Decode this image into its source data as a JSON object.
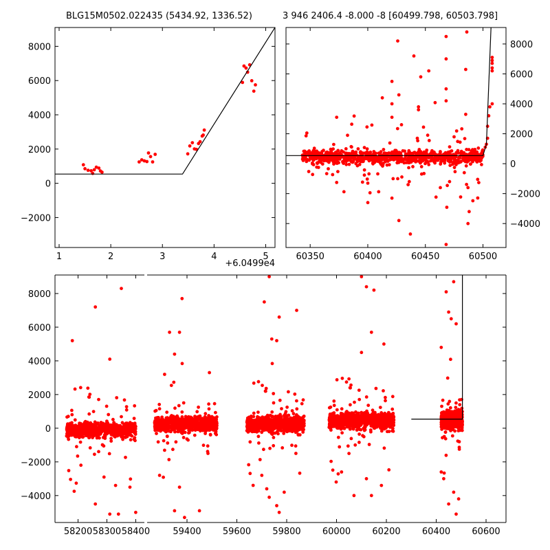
{
  "colors": {
    "points": "#ff0000",
    "model": "#000000",
    "axes": "#000000",
    "background": "#ffffff"
  },
  "chart_data": [
    {
      "id": "zoom",
      "type": "scatter",
      "title": "BLG15M0502.022435 (5434.92, 1336.52)",
      "x_offset_label": "+6.0499e4",
      "xlim": [
        0.92,
        5.18
      ],
      "ylim": [
        -3750,
        9100
      ],
      "xticks": [
        1,
        2,
        3,
        4,
        5
      ],
      "yticks": [
        -2000,
        0,
        2000,
        4000,
        6000,
        8000
      ],
      "ytick_side": "left",
      "points": [
        [
          1.47,
          1080
        ],
        [
          1.5,
          850
        ],
        [
          1.56,
          760
        ],
        [
          1.62,
          730
        ],
        [
          1.65,
          580
        ],
        [
          1.68,
          790
        ],
        [
          1.72,
          940
        ],
        [
          1.77,
          890
        ],
        [
          1.8,
          720
        ],
        [
          1.83,
          650
        ],
        [
          2.55,
          1250
        ],
        [
          2.6,
          1370
        ],
        [
          2.65,
          1310
        ],
        [
          2.7,
          1270
        ],
        [
          2.73,
          1770
        ],
        [
          2.77,
          1560
        ],
        [
          2.81,
          1250
        ],
        [
          2.86,
          1690
        ],
        [
          3.49,
          1720
        ],
        [
          3.53,
          2180
        ],
        [
          3.58,
          2370
        ],
        [
          3.62,
          2010
        ],
        [
          3.66,
          1980
        ],
        [
          3.7,
          2320
        ],
        [
          3.73,
          2430
        ],
        [
          3.77,
          2760
        ],
        [
          3.79,
          2820
        ],
        [
          3.81,
          3110
        ],
        [
          4.55,
          5890
        ],
        [
          4.58,
          6850
        ],
        [
          4.62,
          6730
        ],
        [
          4.65,
          6490
        ],
        [
          4.69,
          6920
        ],
        [
          4.73,
          5990
        ],
        [
          4.77,
          5380
        ],
        [
          4.8,
          5750
        ]
      ],
      "model": [
        [
          0.92,
          540
        ],
        [
          3.39,
          540
        ],
        [
          5.18,
          9100
        ]
      ]
    },
    {
      "id": "recent",
      "type": "scatter",
      "title": "3 946 2406.4 -8.000 -8 [60499.798, 60503.798]",
      "xlim": [
        60329,
        60520
      ],
      "ylim": [
        -5600,
        9100
      ],
      "xticks": [
        60350,
        60400,
        60450,
        60500
      ],
      "yticks": [
        -4000,
        -2000,
        0,
        2000,
        4000,
        6000,
        8000
      ],
      "ytick_side": "right",
      "generated": {
        "count": 900,
        "center": 450,
        "spread": 360,
        "outlier_rate": 0.07,
        "x_gap": [
          60362,
          60363
        ]
      },
      "extra_points": [
        [
          60426,
          8200
        ],
        [
          60440,
          7200
        ],
        [
          60468,
          8500
        ],
        [
          60486,
          8800
        ],
        [
          60468,
          7000
        ],
        [
          60453,
          6200
        ],
        [
          60446,
          5800
        ],
        [
          60485,
          6300
        ],
        [
          60468,
          5000
        ],
        [
          60421,
          5500
        ],
        [
          60421,
          4000
        ],
        [
          60427,
          4600
        ],
        [
          60444,
          3800
        ],
        [
          60444,
          3600
        ],
        [
          60468,
          4200
        ],
        [
          60485,
          3300
        ],
        [
          60421,
          3100
        ],
        [
          60373,
          3100
        ],
        [
          60443,
          1700
        ],
        [
          60452,
          1900
        ],
        [
          60400,
          -1300
        ],
        [
          60422,
          -1000
        ],
        [
          60471,
          -1200
        ],
        [
          60436,
          -1200
        ],
        [
          60463,
          -1600
        ],
        [
          60435,
          -1400
        ],
        [
          60400,
          -2600
        ],
        [
          60421,
          -2300
        ],
        [
          60426,
          -1000
        ],
        [
          60487,
          -1600
        ],
        [
          60488,
          -3200
        ],
        [
          60427,
          -3800
        ],
        [
          60437,
          -4700
        ],
        [
          60487,
          -4000
        ],
        [
          60468,
          -5400
        ],
        [
          60502,
          1100
        ],
        [
          60503,
          1300
        ],
        [
          60504,
          1700
        ],
        [
          60504,
          2500
        ],
        [
          60505,
          3200
        ],
        [
          60506,
          3800
        ],
        [
          60508,
          4000
        ],
        [
          60508,
          6200
        ],
        [
          60508,
          6400
        ],
        [
          60508,
          6700
        ],
        [
          60508,
          6900
        ],
        [
          60508,
          7100
        ]
      ],
      "model": [
        [
          60329,
          540
        ],
        [
          60500,
          540
        ],
        [
          60503,
          1300
        ],
        [
          60507,
          9100
        ]
      ]
    },
    {
      "id": "full",
      "type": "scatter",
      "title": "",
      "broken_x_axis": true,
      "segments": [
        {
          "xlim": [
            58120,
            58430
          ],
          "xticks": [
            58200,
            58300,
            58400
          ],
          "clusters": [
            {
              "xmin": 58160,
              "xmax": 58400,
              "center": -100,
              "spread": 330,
              "count": 750
            }
          ]
        },
        {
          "xlim": [
            59240,
            60680
          ],
          "xticks": [
            59400,
            59600,
            59800,
            60000,
            60200,
            60400,
            60600
          ],
          "clusters": [
            {
              "xmin": 59270,
              "xmax": 59520,
              "center": 250,
              "spread": 330,
              "count": 900
            },
            {
              "xmin": 59640,
              "xmax": 59870,
              "center": 250,
              "spread": 360,
              "count": 850
            },
            {
              "xmin": 59970,
              "xmax": 60230,
              "center": 450,
              "spread": 360,
              "count": 900
            },
            {
              "xmin": 60420,
              "xmax": 60505,
              "center": 500,
              "spread": 380,
              "count": 650
            }
          ]
        }
      ],
      "ylim": [
        -5600,
        9100
      ],
      "yticks": [
        -4000,
        -2000,
        0,
        2000,
        4000,
        6000,
        8000
      ],
      "ytick_side": "left",
      "outlier_rate": 0.06,
      "extra_points": [
        [
          58260,
          7200
        ],
        [
          58350,
          8300
        ],
        [
          58180,
          5200
        ],
        [
          58310,
          4100
        ],
        [
          58210,
          -2200
        ],
        [
          58290,
          -2900
        ],
        [
          58330,
          -3400
        ],
        [
          58380,
          -3500
        ],
        [
          58340,
          -5100
        ],
        [
          58310,
          -5100
        ],
        [
          58260,
          -4500
        ],
        [
          58400,
          -5000
        ],
        [
          59380,
          7700
        ],
        [
          59370,
          5700
        ],
        [
          59330,
          5700
        ],
        [
          59350,
          4400
        ],
        [
          59310,
          3200
        ],
        [
          59490,
          3300
        ],
        [
          59350,
          -4900
        ],
        [
          59390,
          -5300
        ],
        [
          59450,
          -4900
        ],
        [
          59290,
          -2800
        ],
        [
          59370,
          -3500
        ],
        [
          59710,
          7500
        ],
        [
          59840,
          7000
        ],
        [
          59770,
          6600
        ],
        [
          59740,
          5300
        ],
        [
          59760,
          5200
        ],
        [
          59730,
          9000
        ],
        [
          59700,
          -2800
        ],
        [
          59730,
          -4100
        ],
        [
          59760,
          -4600
        ],
        [
          59770,
          -5000
        ],
        [
          59720,
          -3600
        ],
        [
          59790,
          -3800
        ],
        [
          60120,
          8400
        ],
        [
          60150,
          8200
        ],
        [
          60100,
          9000
        ],
        [
          60140,
          5700
        ],
        [
          60190,
          5000
        ],
        [
          60100,
          4500
        ],
        [
          60070,
          -4000
        ],
        [
          60140,
          -4000
        ],
        [
          60120,
          -3000
        ],
        [
          60020,
          -2600
        ],
        [
          60180,
          -3400
        ],
        [
          60050,
          -1500
        ],
        [
          60470,
          8700
        ],
        [
          60440,
          8100
        ],
        [
          60450,
          6900
        ],
        [
          60460,
          6500
        ],
        [
          60480,
          6200
        ],
        [
          60420,
          4800
        ],
        [
          60470,
          -3800
        ],
        [
          60490,
          -4200
        ],
        [
          60450,
          -4500
        ],
        [
          60480,
          -5100
        ],
        [
          60430,
          -3000
        ],
        [
          60420,
          -2600
        ]
      ],
      "model": [
        [
          60300,
          540
        ],
        [
          60505,
          540
        ],
        [
          60505,
          9100
        ]
      ]
    }
  ]
}
